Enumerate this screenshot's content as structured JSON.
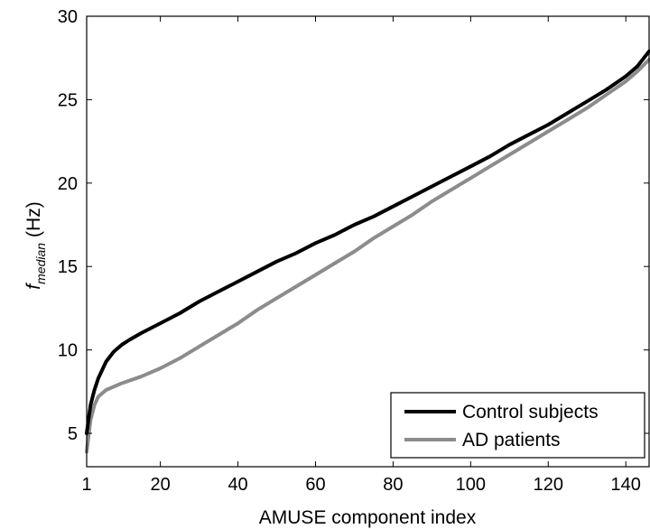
{
  "chart_data": {
    "type": "line",
    "title": "",
    "xlabel": "AMUSE component index",
    "ylabel": {
      "main": "f",
      "subscript": "median",
      "unit": "(Hz)"
    },
    "xlim": [
      1,
      146
    ],
    "ylim": [
      3,
      30
    ],
    "x_ticks": [
      1,
      20,
      40,
      60,
      80,
      100,
      120,
      140
    ],
    "y_ticks": [
      5,
      10,
      15,
      20,
      25,
      30
    ],
    "grid": false,
    "legend_position": "bottom-right",
    "series": [
      {
        "name": "Control subjects",
        "color": "#000000",
        "points": [
          [
            1,
            5.0
          ],
          [
            2,
            6.7
          ],
          [
            3,
            7.6
          ],
          [
            4,
            8.3
          ],
          [
            5,
            8.8
          ],
          [
            6,
            9.3
          ],
          [
            7,
            9.6
          ],
          [
            8,
            9.9
          ],
          [
            10,
            10.3
          ],
          [
            12,
            10.6
          ],
          [
            15,
            11.0
          ],
          [
            20,
            11.6
          ],
          [
            25,
            12.2
          ],
          [
            30,
            12.9
          ],
          [
            35,
            13.5
          ],
          [
            40,
            14.1
          ],
          [
            45,
            14.7
          ],
          [
            50,
            15.3
          ],
          [
            55,
            15.8
          ],
          [
            60,
            16.4
          ],
          [
            65,
            16.9
          ],
          [
            70,
            17.5
          ],
          [
            75,
            18.0
          ],
          [
            80,
            18.6
          ],
          [
            85,
            19.2
          ],
          [
            90,
            19.8
          ],
          [
            95,
            20.4
          ],
          [
            100,
            21.0
          ],
          [
            105,
            21.6
          ],
          [
            110,
            22.3
          ],
          [
            115,
            22.9
          ],
          [
            120,
            23.5
          ],
          [
            125,
            24.2
          ],
          [
            130,
            24.9
          ],
          [
            135,
            25.6
          ],
          [
            140,
            26.4
          ],
          [
            143,
            27.0
          ],
          [
            146,
            27.9
          ]
        ]
      },
      {
        "name": "AD patients",
        "color": "#8c8c8c",
        "points": [
          [
            1,
            3.9
          ],
          [
            2,
            5.8
          ],
          [
            3,
            6.7
          ],
          [
            4,
            7.2
          ],
          [
            5,
            7.4
          ],
          [
            6,
            7.6
          ],
          [
            8,
            7.8
          ],
          [
            10,
            8.0
          ],
          [
            15,
            8.4
          ],
          [
            20,
            8.9
          ],
          [
            25,
            9.5
          ],
          [
            30,
            10.2
          ],
          [
            35,
            10.9
          ],
          [
            40,
            11.6
          ],
          [
            45,
            12.4
          ],
          [
            50,
            13.1
          ],
          [
            55,
            13.8
          ],
          [
            60,
            14.5
          ],
          [
            65,
            15.2
          ],
          [
            70,
            15.9
          ],
          [
            75,
            16.7
          ],
          [
            80,
            17.4
          ],
          [
            85,
            18.1
          ],
          [
            90,
            18.9
          ],
          [
            95,
            19.6
          ],
          [
            100,
            20.3
          ],
          [
            105,
            21.0
          ],
          [
            110,
            21.7
          ],
          [
            115,
            22.4
          ],
          [
            120,
            23.1
          ],
          [
            125,
            23.8
          ],
          [
            130,
            24.5
          ],
          [
            135,
            25.3
          ],
          [
            140,
            26.1
          ],
          [
            143,
            26.7
          ],
          [
            146,
            27.4
          ]
        ]
      }
    ]
  }
}
